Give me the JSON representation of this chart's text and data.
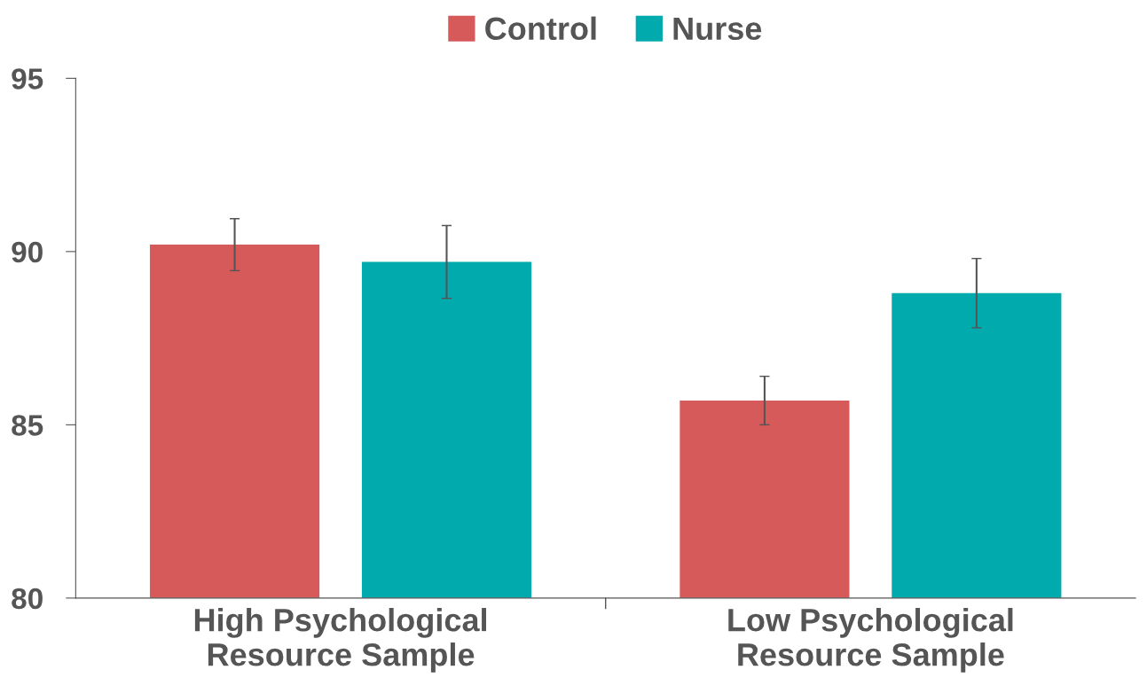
{
  "chart_data": {
    "type": "bar",
    "categories": [
      "High Psychological\nResource Sample",
      "Low Psychological\nResource Sample"
    ],
    "series": [
      {
        "name": "Control",
        "color": "#d65a5a",
        "values": [
          90.2,
          85.7
        ],
        "errors": [
          0.75,
          0.7
        ]
      },
      {
        "name": "Nurse",
        "color": "#00aaad",
        "values": [
          89.7,
          88.8
        ],
        "errors": [
          1.05,
          1.0
        ]
      }
    ],
    "ylim": [
      80,
      95
    ],
    "yticks": [
      80,
      85,
      90,
      95
    ],
    "grid": false,
    "legend": "top"
  }
}
